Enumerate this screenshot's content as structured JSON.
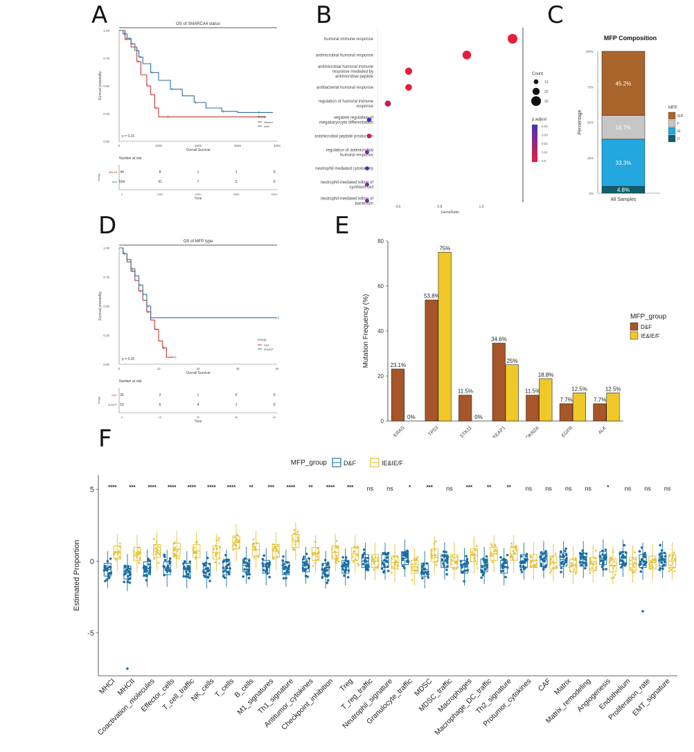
{
  "panel_labels": {
    "a": "A",
    "b": "B",
    "c": "C",
    "d": "D",
    "e": "E",
    "f": "F"
  },
  "colors": {
    "df": "#1a6fa3",
    "ie": "#e6c12e",
    "brown": "#a65628",
    "gold": "#f0c929",
    "red_curve": "#c0392b",
    "blue_curve": "#2e6e9e",
    "c_orange": "#a9652b",
    "c_grey": "#c6c6c6",
    "c_cyan": "#22a7de",
    "c_teal": "#0d5f6b"
  },
  "chart_data": [
    {
      "id": "A",
      "type": "line",
      "title": "OS of SMARCA4 status",
      "ylabel": "Survival probability",
      "xlabel": "Overall Survival",
      "y_ticks": [
        "1.00",
        "0.75",
        "0.50",
        "0.25",
        "0.00"
      ],
      "x_ticks": [
        "0",
        "1000",
        "2000",
        "3000",
        "4000"
      ],
      "pvalue": "p = 0.15",
      "legend_title": "Group",
      "series": [
        {
          "name": "Altered",
          "x": [
            0,
            150,
            300,
            450,
            550,
            700,
            800,
            900,
            1000,
            1200,
            3700
          ],
          "y": [
            1.0,
            0.92,
            0.85,
            0.72,
            0.6,
            0.5,
            0.42,
            0.3,
            0.22,
            0.22,
            0.22
          ]
        },
        {
          "name": "Wild",
          "x": [
            0,
            100,
            200,
            300,
            400,
            500,
            600,
            800,
            1000,
            1300,
            1600,
            1900,
            2200,
            2600,
            3000,
            3500,
            3900
          ],
          "y": [
            1.0,
            0.97,
            0.93,
            0.88,
            0.82,
            0.76,
            0.7,
            0.62,
            0.55,
            0.47,
            0.41,
            0.35,
            0.3,
            0.27,
            0.26,
            0.26,
            0.26
          ]
        }
      ],
      "risk_table": {
        "title": "Number at risk",
        "row_label": "Group",
        "rows": [
          {
            "name": "Altered",
            "values": [
              "44",
              "8",
              "1",
              "1",
              "0"
            ]
          },
          {
            "name": "Wild",
            "values": [
              "554",
              "41",
              "7",
              "2",
              "0"
            ]
          }
        ],
        "x_ticks": [
          "0",
          "1000",
          "2000",
          "3000",
          "4000"
        ],
        "xlabel": "Time"
      }
    },
    {
      "id": "B",
      "type": "scatter",
      "xlabel": "GeneRatio",
      "x_ticks": [
        "0.6",
        "0.8",
        "1.0"
      ],
      "xlim": [
        0.5,
        1.2
      ],
      "terms": [
        "humoral immune response",
        "antimicrobial humoral response",
        "antimicrobial humoral immune response mediated by antimicrobial peptide",
        "antibacterial humoral response",
        "regulation of humoral immune response",
        "negative regulation of megakaryocyte differentiation",
        "antimicrobial peptide production",
        "regulation of antimicrobial humoral response",
        "neutrophil mediated cytotoxicity",
        "neutrophil-mediated killing of symbiont cell",
        "neutrophil-mediated killing of bacterium"
      ],
      "gene_ratio": [
        1.15,
        0.93,
        0.65,
        0.65,
        0.55,
        0.46,
        0.46,
        0.45,
        0.45,
        0.45,
        0.45
      ],
      "count": [
        30,
        26,
        20,
        18,
        16,
        10,
        10,
        8,
        8,
        8,
        8
      ],
      "p_adjust": [
        0.0,
        0.0,
        0.0,
        0.0,
        0.01,
        0.04,
        0.01,
        0.03,
        0.04,
        0.03,
        0.03
      ],
      "count_legend": {
        "title": "Count",
        "values": [
          "10",
          "20",
          "30"
        ]
      },
      "color_legend": {
        "title": "p.adjust",
        "values": [
          "0.04",
          "0.03",
          "0.02",
          "0.01",
          "0.0"
        ]
      }
    },
    {
      "id": "C",
      "type": "bar",
      "title": "MFP Composition",
      "ylabel": "Percentage",
      "categories": [
        "All Samples"
      ],
      "y_ticks": [
        "100%",
        "75%",
        "50%",
        "25%",
        "0%"
      ],
      "segments": [
        {
          "name": "D",
          "value": 4.8,
          "label": "4.8%"
        },
        {
          "name": "IE",
          "value": 33.3,
          "label": "33.3%"
        },
        {
          "name": "F",
          "value": 16.7,
          "label": "16.7%"
        },
        {
          "name": "IE/F",
          "value": 45.2,
          "label": "45.2%"
        }
      ],
      "legend_title": "MFP"
    },
    {
      "id": "D",
      "type": "line",
      "title": "OS of MFP type",
      "ylabel": "Survival probability",
      "xlabel": "Overall Survival",
      "y_ticks": [
        "1.00",
        "0.75",
        "0.50",
        "0.25",
        "0.00"
      ],
      "x_ticks": [
        "0",
        "10",
        "20",
        "30",
        "40"
      ],
      "pvalue": "p = 0.05",
      "legend_title": "Group",
      "series": [
        {
          "name": "D&F",
          "x": [
            0,
            1,
            2,
            3,
            4,
            5,
            6,
            7,
            8,
            9,
            10,
            11,
            12,
            14
          ],
          "y": [
            1.0,
            0.95,
            0.88,
            0.8,
            0.72,
            0.63,
            0.55,
            0.45,
            0.38,
            0.3,
            0.2,
            0.14,
            0.06,
            0.06
          ]
        },
        {
          "name": "IE&IE/F",
          "x": [
            0,
            1,
            2,
            3,
            4,
            5,
            6,
            7,
            8,
            40
          ],
          "y": [
            1.0,
            0.95,
            0.9,
            0.82,
            0.76,
            0.68,
            0.6,
            0.5,
            0.4,
            0.4
          ]
        }
      ],
      "risk_table": {
        "title": "Number at risk",
        "row_label": "Group",
        "rows": [
          {
            "name": "D&F",
            "values": [
              "26",
              "2",
              "1",
              "0",
              "0"
            ]
          },
          {
            "name": "IE&IE/F",
            "values": [
              "16",
              "6",
              "4",
              "1",
              "0"
            ]
          }
        ],
        "x_ticks": [
          "0",
          "10",
          "20",
          "30",
          "40"
        ],
        "xlabel": "Time"
      }
    },
    {
      "id": "E",
      "type": "bar",
      "ylabel": "Mutation Frequency (%)",
      "ylim": [
        0,
        80
      ],
      "y_ticks": [
        "80",
        "60",
        "40",
        "20",
        "0"
      ],
      "categories": [
        "KRAS",
        "TP53",
        "STK11",
        "KEAP1",
        "CDKN2A",
        "EGFR",
        "ALK"
      ],
      "legend_title": "MFP_group",
      "series": [
        {
          "name": "D&F",
          "values": [
            23.1,
            53.8,
            11.5,
            34.6,
            11.5,
            7.7,
            7.7
          ],
          "labels": [
            "23.1%",
            "53.8%",
            "11.5%",
            "34.6%",
            "11.5%",
            "7.7%",
            "7.7%"
          ]
        },
        {
          "name": "IE&IE/F",
          "values": [
            0,
            75,
            0,
            25,
            18.8,
            12.5,
            12.5
          ],
          "labels": [
            "0%",
            "75%",
            "0%",
            "25%",
            "18.8%",
            "12.5%",
            "12.5%"
          ]
        }
      ]
    },
    {
      "id": "F",
      "type": "box",
      "ylabel": "Estimated Proportion",
      "ylim": [
        -8,
        6
      ],
      "y_ticks": [
        "5",
        "0",
        "-5"
      ],
      "legend_title": "MFP_group",
      "legend": [
        "D&F",
        "IE&IE/F"
      ],
      "categories": [
        "MHCI",
        "MHCII",
        "Coactivation_molecules",
        "Effector_cells",
        "T_cell_traffic",
        "NK_cells",
        "T_cells",
        "B_cells",
        "M1_signatures",
        "Th1_signature",
        "Antitumor_cytokines",
        "Checkpoint_inhibition",
        "Treg",
        "T_reg_traffic",
        "Neutrophil_signature",
        "Granulocyte_traffic",
        "MDSC",
        "MDSC_traffic",
        "Macrophages",
        "Macrophage_DC_traffic",
        "Th2_signature",
        "Protumor_cytokines",
        "CAF",
        "Matrix",
        "Matrix_remodeling",
        "Angiogenesis",
        "Endothelium",
        "Proliferation_rate",
        "EMT_signature"
      ],
      "significance": [
        "****",
        "***",
        "****",
        "****",
        "****",
        "****",
        "****",
        "**",
        "***",
        "****",
        "**",
        "****",
        "***",
        "ns",
        "ns",
        "*",
        "***",
        "ns",
        "***",
        "**",
        "**",
        "ns",
        "ns",
        "ns",
        "ns",
        "*",
        "ns",
        "ns",
        "ns"
      ],
      "df_median": [
        -0.6,
        -0.8,
        -0.5,
        -0.5,
        -0.6,
        -0.6,
        -0.5,
        -0.3,
        -0.4,
        -0.5,
        -0.3,
        -0.6,
        -0.4,
        0.0,
        0.0,
        0.2,
        -0.6,
        0.0,
        -0.4,
        -0.3,
        -0.4,
        0.0,
        0.1,
        0.1,
        0.1,
        0.2,
        0.2,
        0.0,
        0.1
      ],
      "ie_median": [
        0.6,
        0.5,
        0.7,
        0.8,
        0.7,
        0.6,
        1.3,
        0.8,
        0.7,
        1.4,
        0.5,
        0.6,
        0.5,
        0.0,
        -0.1,
        -0.4,
        0.4,
        0.0,
        0.4,
        0.5,
        0.5,
        0.0,
        -0.1,
        -0.3,
        -0.2,
        -0.3,
        -0.2,
        -0.1,
        0.0
      ]
    }
  ]
}
